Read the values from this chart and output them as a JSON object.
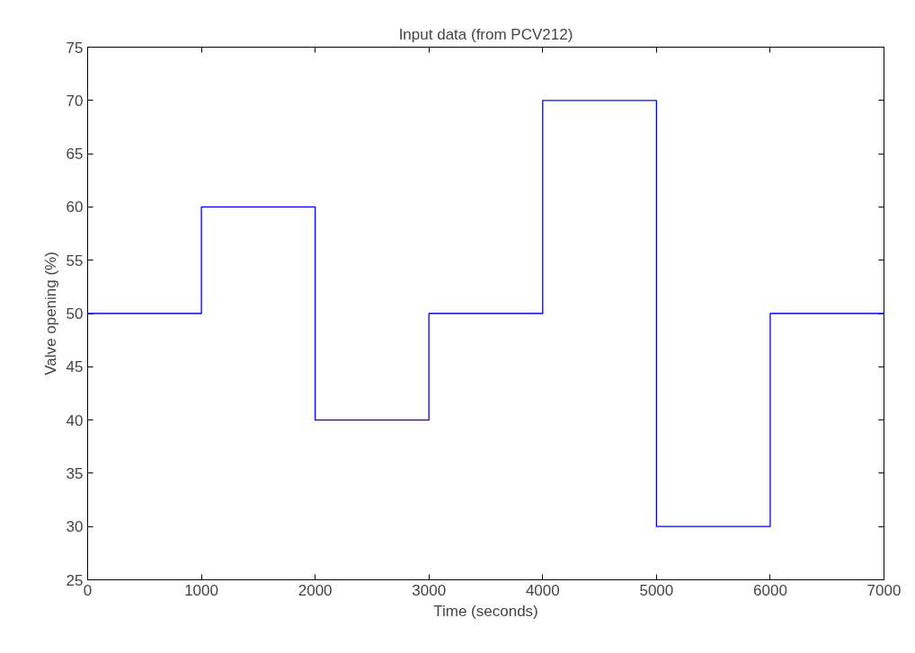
{
  "chart_data": {
    "type": "step",
    "title": "Input data (from PCV212)",
    "xlabel": "Time (seconds)",
    "ylabel": "Valve opening (%)",
    "x": [
      0,
      1000,
      2000,
      3000,
      4000,
      5000,
      6000,
      7000
    ],
    "series": [
      {
        "color": "#0000ff",
        "values": [
          50,
          60,
          40,
          50,
          70,
          30,
          50,
          50
        ]
      }
    ],
    "xlim": [
      0,
      7000
    ],
    "xticks": [
      0,
      1000,
      2000,
      3000,
      4000,
      5000,
      6000,
      7000
    ],
    "ylim": [
      25,
      75
    ],
    "yticks": [
      25,
      30,
      35,
      40,
      45,
      50,
      55,
      60,
      65,
      70,
      75
    ],
    "grid": false
  }
}
